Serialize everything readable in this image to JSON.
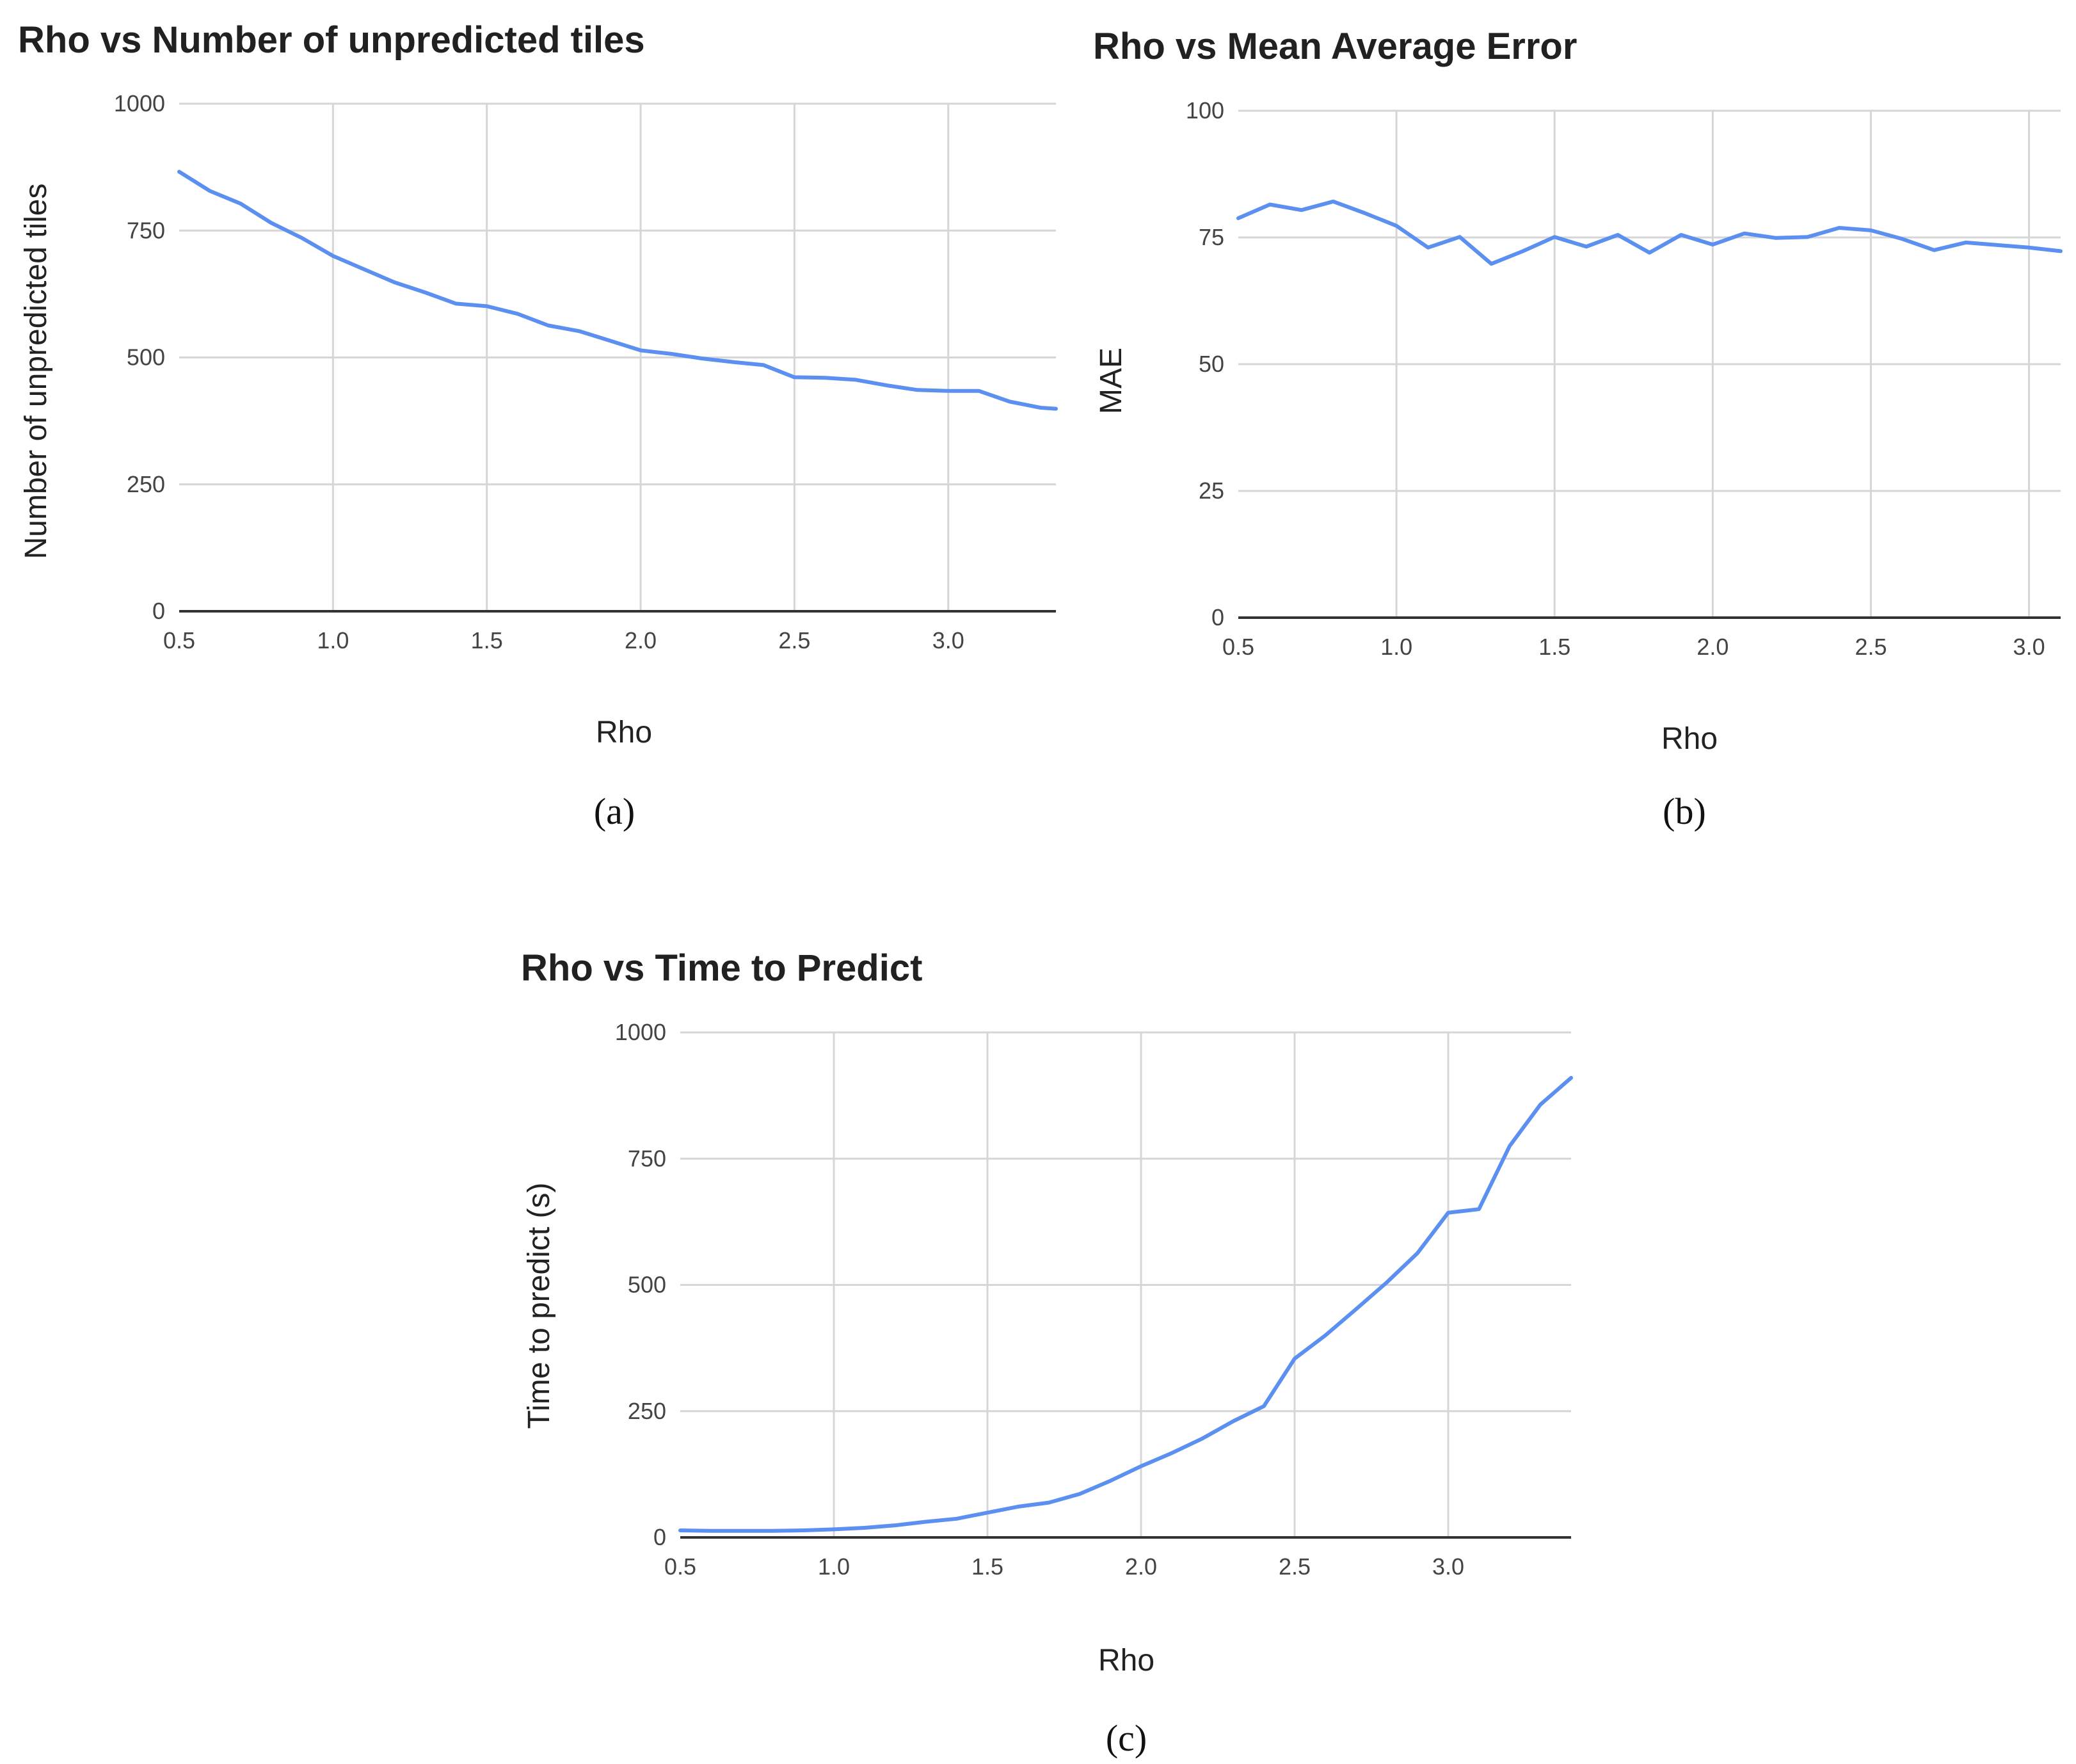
{
  "chart_data": [
    {
      "type": "line",
      "title": "Rho vs Number of unpredicted tiles",
      "xlabel": "Rho",
      "ylabel": "Number of unpredicted tiles",
      "caption": "(a)",
      "xlim": [
        0.5,
        3.35
      ],
      "ylim": [
        0,
        1000
      ],
      "xticks": [
        "0.5",
        "1.0",
        "1.5",
        "2.0",
        "2.5",
        "3.0"
      ],
      "yticks": [
        "0",
        "250",
        "500",
        "750",
        "1000"
      ],
      "grid": true,
      "line_color": "#5b8ff0",
      "series": [
        {
          "x": [
            0.5,
            0.6,
            0.7,
            0.8,
            0.9,
            1.0,
            1.1,
            1.2,
            1.3,
            1.4,
            1.5,
            1.6,
            1.7,
            1.8,
            1.9,
            2.0,
            2.1,
            2.2,
            2.3,
            2.4,
            2.5,
            2.6,
            2.7,
            2.8,
            2.9,
            3.0,
            3.1,
            3.2,
            3.3,
            3.35
          ],
          "values": [
            866,
            828,
            803,
            765,
            735,
            700,
            674,
            648,
            628,
            606,
            601,
            586,
            563,
            552,
            533,
            514,
            507,
            498,
            491,
            485,
            461,
            460,
            456,
            445,
            436,
            434,
            434,
            413,
            401,
            399
          ]
        }
      ]
    },
    {
      "type": "line",
      "title": "Rho vs Mean Average Error",
      "xlabel": "Rho",
      "ylabel": "MAE",
      "caption": "(b)",
      "xlim": [
        0.5,
        3.1
      ],
      "ylim": [
        0,
        100
      ],
      "xticks": [
        "0.5",
        "1.0",
        "1.5",
        "2.0",
        "2.5",
        "3.0"
      ],
      "yticks": [
        "0",
        "25",
        "50",
        "75",
        "100"
      ],
      "grid": true,
      "line_color": "#5b8ff0",
      "series": [
        {
          "x": [
            0.5,
            0.6,
            0.7,
            0.8,
            0.9,
            1.0,
            1.1,
            1.2,
            1.3,
            1.4,
            1.5,
            1.6,
            1.7,
            1.8,
            1.9,
            2.0,
            2.1,
            2.2,
            2.3,
            2.4,
            2.5,
            2.6,
            2.7,
            2.8,
            2.9,
            3.0,
            3.1
          ],
          "values": [
            78.8,
            81.5,
            80.4,
            82.1,
            79.8,
            77.3,
            73.0,
            75.1,
            69.8,
            72.3,
            75.1,
            73.2,
            75.5,
            72.0,
            75.5,
            73.6,
            75.8,
            74.9,
            75.1,
            76.9,
            76.4,
            74.7,
            72.5,
            74.0,
            73.5,
            73.0,
            72.3
          ]
        }
      ]
    },
    {
      "type": "line",
      "title": "Rho vs Time to Predict",
      "xlabel": "Rho",
      "ylabel": "Time to predict (s)",
      "caption": "(c)",
      "xlim": [
        0.5,
        3.4
      ],
      "ylim": [
        0,
        1000
      ],
      "xticks": [
        "0.5",
        "1.0",
        "1.5",
        "2.0",
        "2.5",
        "3.0"
      ],
      "yticks": [
        "0",
        "250",
        "500",
        "750",
        "1000"
      ],
      "grid": true,
      "line_color": "#5b8ff0",
      "series": [
        {
          "x": [
            0.5,
            0.6,
            0.7,
            0.8,
            0.9,
            1.0,
            1.1,
            1.2,
            1.3,
            1.4,
            1.5,
            1.6,
            1.7,
            1.8,
            1.9,
            2.0,
            2.1,
            2.2,
            2.3,
            2.4,
            2.5,
            2.6,
            2.7,
            2.8,
            2.9,
            3.0,
            3.1,
            3.2,
            3.3,
            3.4
          ],
          "values": [
            14,
            13,
            13,
            13,
            14,
            16,
            19,
            24,
            31,
            37,
            49,
            61,
            69,
            86,
            112,
            141,
            167,
            196,
            230,
            260,
            354,
            400,
            452,
            505,
            563,
            643,
            650,
            775,
            857,
            910
          ]
        }
      ]
    }
  ]
}
